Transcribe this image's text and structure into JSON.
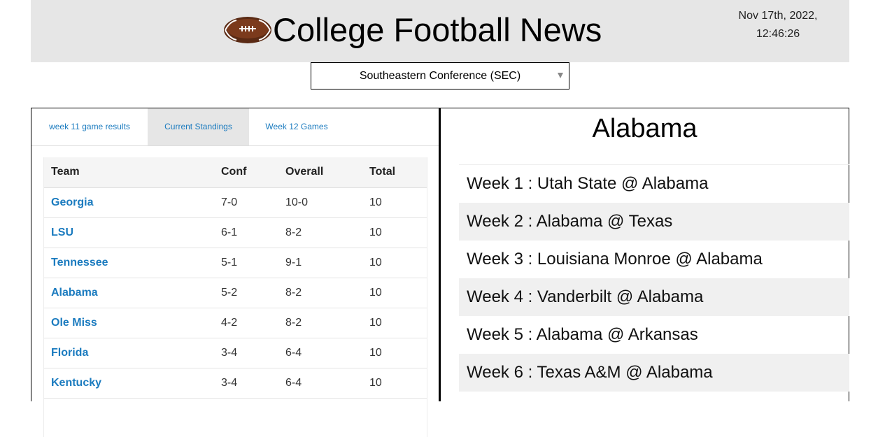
{
  "header": {
    "title": "College Football News",
    "date": "Nov 17th, 2022,",
    "time": "12:46:26",
    "logo_icon": "football-icon"
  },
  "conference_select": {
    "selected": "Southeastern Conference (SEC)"
  },
  "tabs": [
    {
      "label": "week 11 game results",
      "active": false
    },
    {
      "label": "Current Standings",
      "active": true
    },
    {
      "label": "Week 12 Games",
      "active": false
    }
  ],
  "standings": {
    "columns": [
      "Team",
      "Conf",
      "Overall",
      "Total"
    ],
    "rows": [
      {
        "team": "Georgia",
        "conf": "7-0",
        "overall": "10-0",
        "total": "10"
      },
      {
        "team": "LSU",
        "conf": "6-1",
        "overall": "8-2",
        "total": "10"
      },
      {
        "team": "Tennessee",
        "conf": "5-1",
        "overall": "9-1",
        "total": "10"
      },
      {
        "team": "Alabama",
        "conf": "5-2",
        "overall": "8-2",
        "total": "10"
      },
      {
        "team": "Ole Miss",
        "conf": "4-2",
        "overall": "8-2",
        "total": "10"
      },
      {
        "team": "Florida",
        "conf": "3-4",
        "overall": "6-4",
        "total": "10"
      },
      {
        "team": "Kentucky",
        "conf": "3-4",
        "overall": "6-4",
        "total": "10"
      }
    ]
  },
  "team_detail": {
    "name": "Alabama",
    "schedule": [
      "Week 1 : Utah State @ Alabama",
      "Week 2 : Alabama @ Texas",
      "Week 3 : Louisiana Monroe @ Alabama",
      "Week 4 : Vanderbilt @ Alabama",
      "Week 5 : Alabama @ Arkansas",
      "Week 6 : Texas A&M @ Alabama"
    ]
  },
  "colors": {
    "link": "#1b7bbf",
    "header_bg": "#e6e6e6",
    "active_tab_bg": "#e6e6e6"
  }
}
